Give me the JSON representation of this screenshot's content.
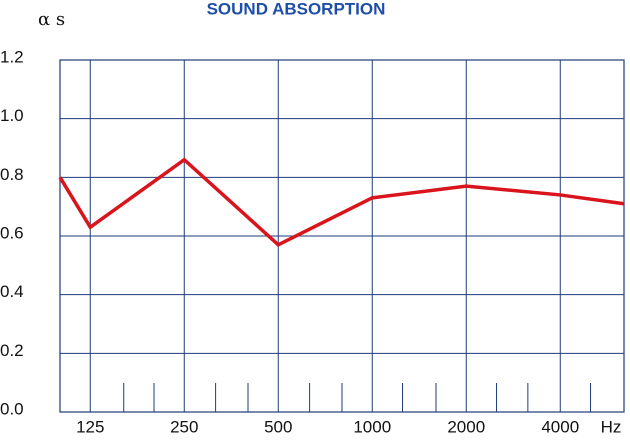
{
  "chart_data": {
    "type": "line",
    "title": "SOUND ABSORPTION",
    "ylabel": "α s",
    "xlabel": "Hz",
    "x": [
      100,
      125,
      250,
      500,
      1000,
      2000,
      4000,
      6400
    ],
    "series": [
      {
        "name": "αs",
        "color": "#d9141c",
        "values": [
          0.8,
          0.63,
          0.86,
          0.57,
          0.73,
          0.77,
          0.74,
          0.71
        ]
      }
    ],
    "xscale": "log",
    "xlim": [
      100,
      6400
    ],
    "xticks": [
      125,
      250,
      500,
      1000,
      2000,
      4000
    ],
    "xminorticks": [
      160,
      200,
      315,
      400,
      630,
      800,
      1250,
      1600,
      2500,
      3150,
      5000
    ],
    "ylim": [
      0,
      1.2
    ],
    "yticks": [
      {
        "value": 0,
        "label": "0.0"
      },
      0.2,
      0.4,
      0.6,
      0.8,
      {
        "value": 1,
        "label": "1.0"
      },
      1.2
    ],
    "grid": true,
    "grid_color": "#1f3b7a",
    "title_color": "#1f4ea8"
  }
}
